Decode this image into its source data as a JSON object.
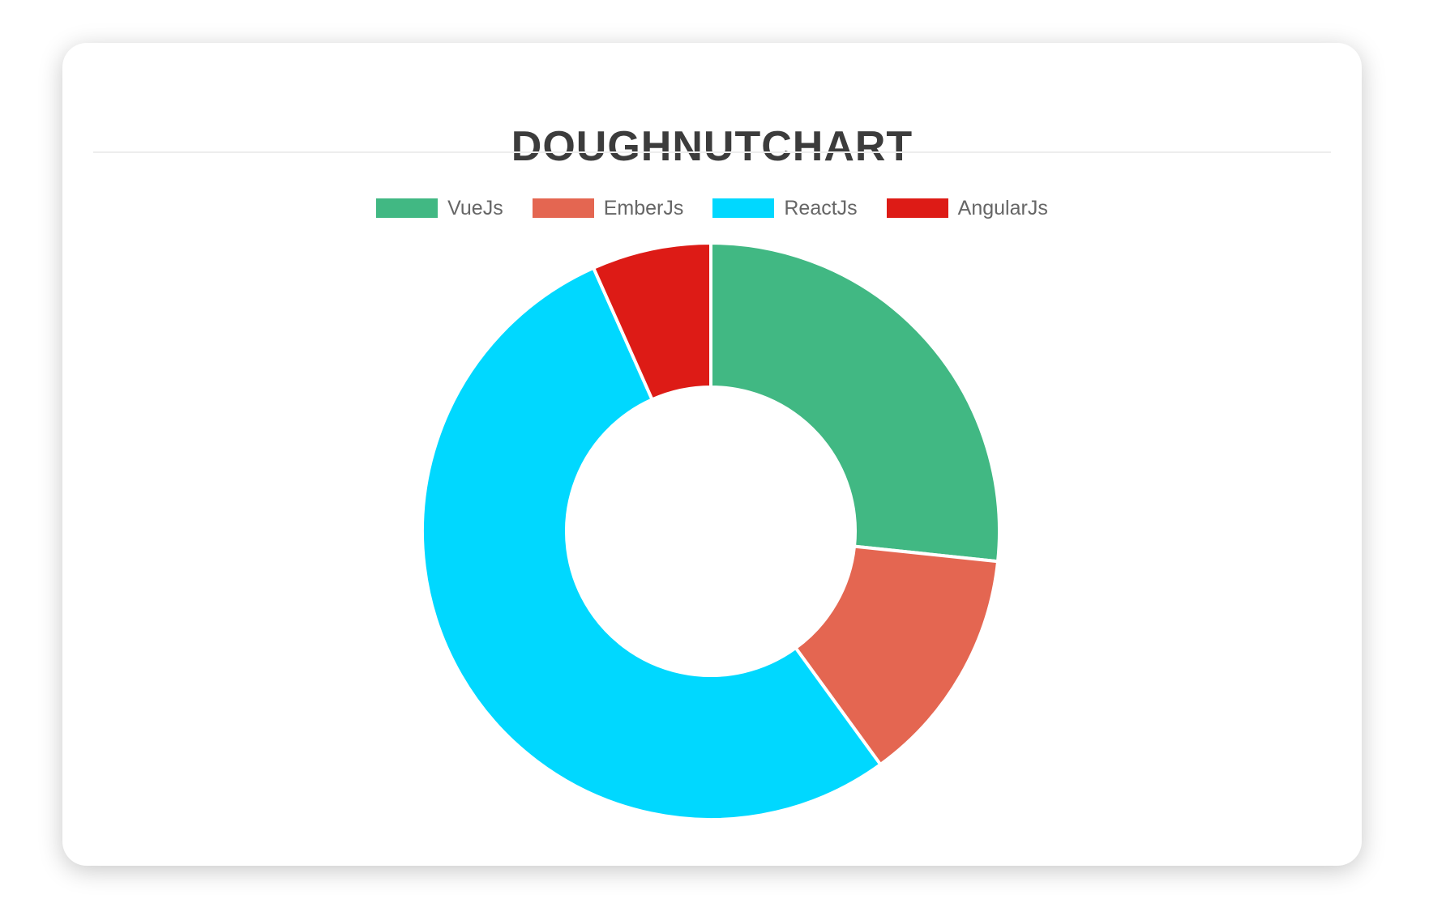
{
  "card": {
    "title": "DOUGHNUTCHART"
  },
  "colors": {
    "title_text": "#3c3c3c",
    "legend_text": "#666666",
    "divider": "#ededed",
    "card_background": "#ffffff",
    "slice_border": "#ffffff"
  },
  "chart_data": {
    "type": "doughnut",
    "title": "DOUGHNUTCHART",
    "labels": [
      "VueJs",
      "EmberJs",
      "ReactJs",
      "AngularJs"
    ],
    "values": [
      40,
      20,
      80,
      10
    ],
    "colors": [
      "#41B883",
      "#E46651",
      "#00D8FF",
      "#DD1B16"
    ],
    "total": 150,
    "cutout_percent": 50,
    "rotation_deg": -90,
    "direction": "clockwise",
    "legend_position": "top",
    "border_color": "#ffffff",
    "border_width": 4
  }
}
